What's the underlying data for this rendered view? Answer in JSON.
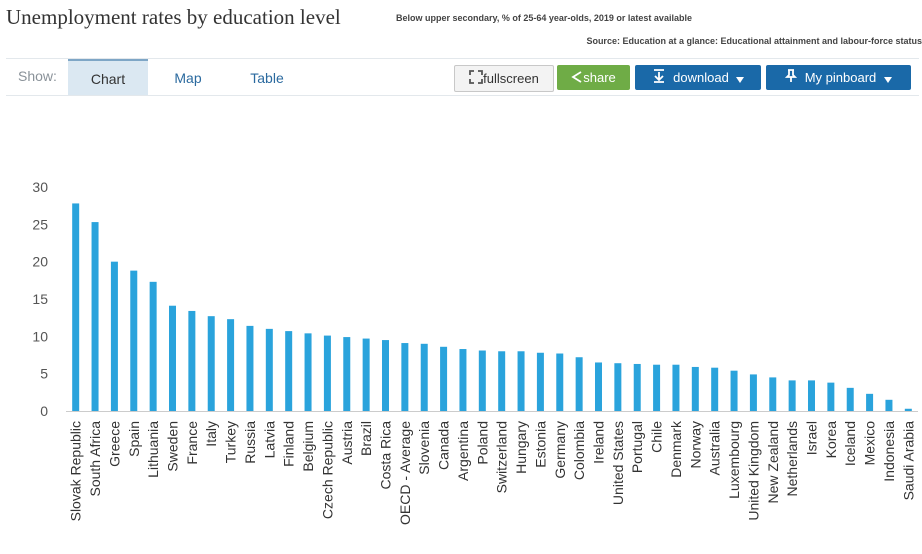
{
  "header": {
    "title": "Unemployment rates by education level",
    "subtitle": "Below upper secondary, % of 25-64 year-olds, 2019 or latest available",
    "source": "Source: Education at a glance: Educational attainment and labour-force status"
  },
  "toolbar": {
    "show_label": "Show:",
    "tabs": [
      {
        "label": "Chart",
        "active": true
      },
      {
        "label": "Map",
        "active": false
      },
      {
        "label": "Table",
        "active": false
      }
    ],
    "fullscreen_label": "fullscreen",
    "share_label": "share",
    "download_label": "download",
    "pinboard_label": "My pinboard",
    "colors": {
      "share": "#6fac46",
      "primary": "#1a69a8"
    },
    "icons": [
      "fullscreen-icon",
      "share-icon",
      "download-icon",
      "pin-icon",
      "caret-down-icon"
    ]
  },
  "chart_data": {
    "type": "bar",
    "title": "",
    "xlabel": "",
    "ylabel": "",
    "ylim": [
      0,
      30
    ],
    "yticks": [
      0,
      5,
      10,
      15,
      20,
      25,
      30
    ],
    "grid": false,
    "legend": "none",
    "bar_color": "#2aa3dc",
    "categories": [
      "Slovak Republic",
      "South Africa",
      "Greece",
      "Spain",
      "Lithuania",
      "Sweden",
      "France",
      "Italy",
      "Turkey",
      "Russia",
      "Latvia",
      "Finland",
      "Belgium",
      "Czech Republic",
      "Austria",
      "Brazil",
      "Costa Rica",
      "OECD - Average",
      "Slovenia",
      "Canada",
      "Argentina",
      "Poland",
      "Switzerland",
      "Hungary",
      "Estonia",
      "Germany",
      "Colombia",
      "Ireland",
      "United States",
      "Portugal",
      "Chile",
      "Denmark",
      "Norway",
      "Australia",
      "Luxembourg",
      "United Kingdom",
      "New Zealand",
      "Netherlands",
      "Israel",
      "Korea",
      "Iceland",
      "Mexico",
      "Indonesia",
      "Saudi Arabia"
    ],
    "values": [
      27.8,
      25.3,
      20.0,
      18.8,
      17.3,
      14.1,
      13.4,
      12.7,
      12.3,
      11.4,
      11.0,
      10.7,
      10.4,
      10.1,
      9.9,
      9.7,
      9.5,
      9.1,
      9.0,
      8.6,
      8.3,
      8.1,
      8.0,
      8.0,
      7.8,
      7.7,
      7.2,
      6.5,
      6.4,
      6.3,
      6.2,
      6.2,
      5.9,
      5.8,
      5.4,
      4.9,
      4.5,
      4.1,
      4.1,
      3.8,
      3.1,
      2.3,
      1.5,
      0.3
    ]
  }
}
